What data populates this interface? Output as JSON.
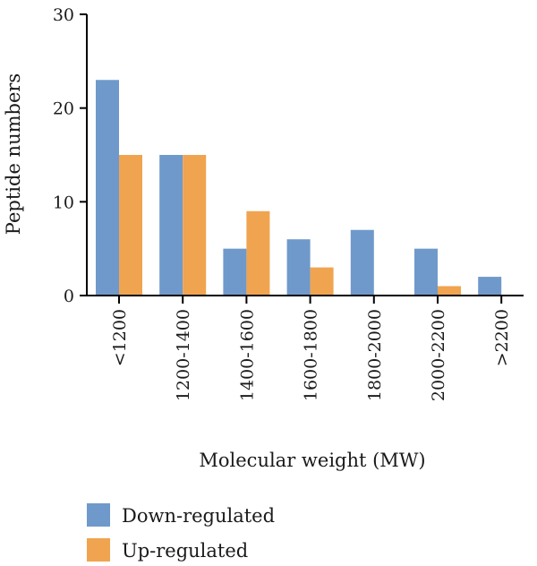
{
  "chart_data": {
    "type": "bar",
    "categories": [
      "<1200",
      "1200-1400",
      "1400-1600",
      "1600-1800",
      "1800-2000",
      "2000-2200",
      ">2200"
    ],
    "series": [
      {
        "name": "Down-regulated",
        "color": "#6f99cb",
        "values": [
          23,
          15,
          5,
          6,
          7,
          5,
          2
        ]
      },
      {
        "name": "Up-regulated",
        "color": "#f0a450",
        "values": [
          15,
          15,
          9,
          3,
          0,
          1,
          0
        ]
      }
    ],
    "xlabel": "Molecular weight (MW)",
    "ylabel": "Peptide numbers",
    "ylim": [
      0,
      30
    ],
    "yticks": [
      0,
      10,
      20,
      30
    ],
    "grid": false,
    "legend_position": "bottom-left"
  }
}
